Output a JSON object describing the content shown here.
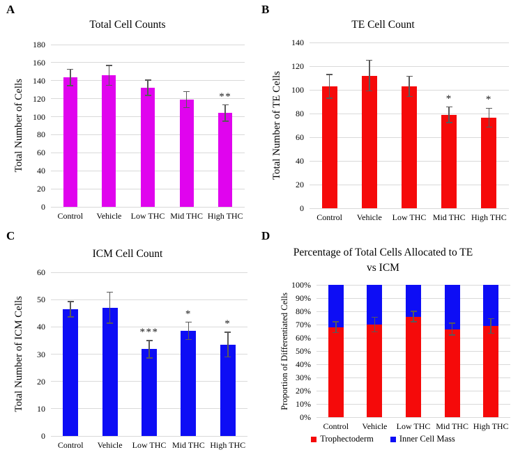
{
  "figure": {
    "background": "#ffffff",
    "grid_color": "#d9d9d9",
    "error_bar_color": "#595959",
    "text_color": "#000000"
  },
  "chart_data": [
    {
      "panel_label": "A",
      "type": "bar",
      "title": "Total Cell Counts",
      "xlabel": "",
      "ylabel": "Total Number of Cells",
      "categories": [
        "Control",
        "Vehicle",
        "Low THC",
        "Mid THC",
        "High THC"
      ],
      "values": [
        143.5,
        146,
        132,
        119,
        104
      ],
      "errors": [
        9,
        11,
        8.5,
        9,
        9
      ],
      "significance": [
        "",
        "",
        "",
        "",
        "**"
      ],
      "ylim": [
        0,
        180
      ],
      "ytick_labels": [
        "0",
        "20",
        "40",
        "60",
        "80",
        "100",
        "120",
        "140",
        "160",
        "180"
      ],
      "bar_color": "#e004ee",
      "grid": true,
      "legend_position": "none"
    },
    {
      "panel_label": "B",
      "type": "bar",
      "title": "TE Cell Count",
      "xlabel": "",
      "ylabel": "Total Number of TE Cells",
      "categories": [
        "Control",
        "Vehicle",
        "Low THC",
        "Mid THC",
        "High THC"
      ],
      "values": [
        103,
        112,
        103,
        79,
        76.5
      ],
      "errors": [
        10,
        13,
        8.5,
        6.5,
        8
      ],
      "significance": [
        "",
        "",
        "",
        "*",
        "*"
      ],
      "ylim": [
        0,
        140
      ],
      "ytick_labels": [
        "0",
        "20",
        "40",
        "60",
        "80",
        "100",
        "120",
        "140"
      ],
      "bar_color": "#f50a0a",
      "grid": true,
      "legend_position": "none"
    },
    {
      "panel_label": "C",
      "type": "bar",
      "title": "ICM Cell Count",
      "xlabel": "",
      "ylabel": "Total Number of ICM Cells",
      "categories": [
        "Control",
        "Vehicle",
        "Low THC",
        "Mid THC",
        "High THC"
      ],
      "values": [
        46.5,
        47,
        31.8,
        38.5,
        33.5
      ],
      "errors": [
        2.8,
        5.7,
        3.2,
        3.2,
        4.5
      ],
      "significance": [
        "",
        "",
        "***",
        "*",
        "*"
      ],
      "ylim": [
        0,
        60
      ],
      "ytick_labels": [
        "0",
        "10",
        "20",
        "30",
        "40",
        "50",
        "60"
      ],
      "bar_color": "#0d0df5",
      "grid": true,
      "legend_position": "none"
    },
    {
      "panel_label": "D",
      "type": "bar",
      "stacked": true,
      "title": "Percentage of Total Cells Allocated to TE vs ICM",
      "title_lines": [
        "Percentage of Total Cells Allocated to TE",
        "vs ICM"
      ],
      "xlabel": "",
      "ylabel": "Proportion of Differentiated Cells",
      "categories": [
        "Control",
        "Vehicle",
        "Low THC",
        "Mid THC",
        "High THC"
      ],
      "series": [
        {
          "name": "Trophectoderm",
          "color": "#f50a0a",
          "values": [
            68,
            70,
            76,
            66.5,
            69
          ]
        },
        {
          "name": "Inner Cell Mass",
          "color": "#0d0df5",
          "values": [
            32,
            30,
            24,
            33.5,
            31
          ]
        }
      ],
      "errors": [
        4,
        5.5,
        4,
        4.5,
        5.5
      ],
      "significance": [
        "",
        "",
        "",
        "",
        ""
      ],
      "ylim": [
        0,
        100
      ],
      "ytick_labels": [
        "0%",
        "10%",
        "20%",
        "30%",
        "40%",
        "50%",
        "60%",
        "70%",
        "80%",
        "90%",
        "100%"
      ],
      "grid": true,
      "legend_position": "bottom",
      "legend": [
        {
          "label": "Trophectoderm",
          "color": "#f50a0a"
        },
        {
          "label": "Inner Cell Mass",
          "color": "#0d0df5"
        }
      ]
    }
  ]
}
